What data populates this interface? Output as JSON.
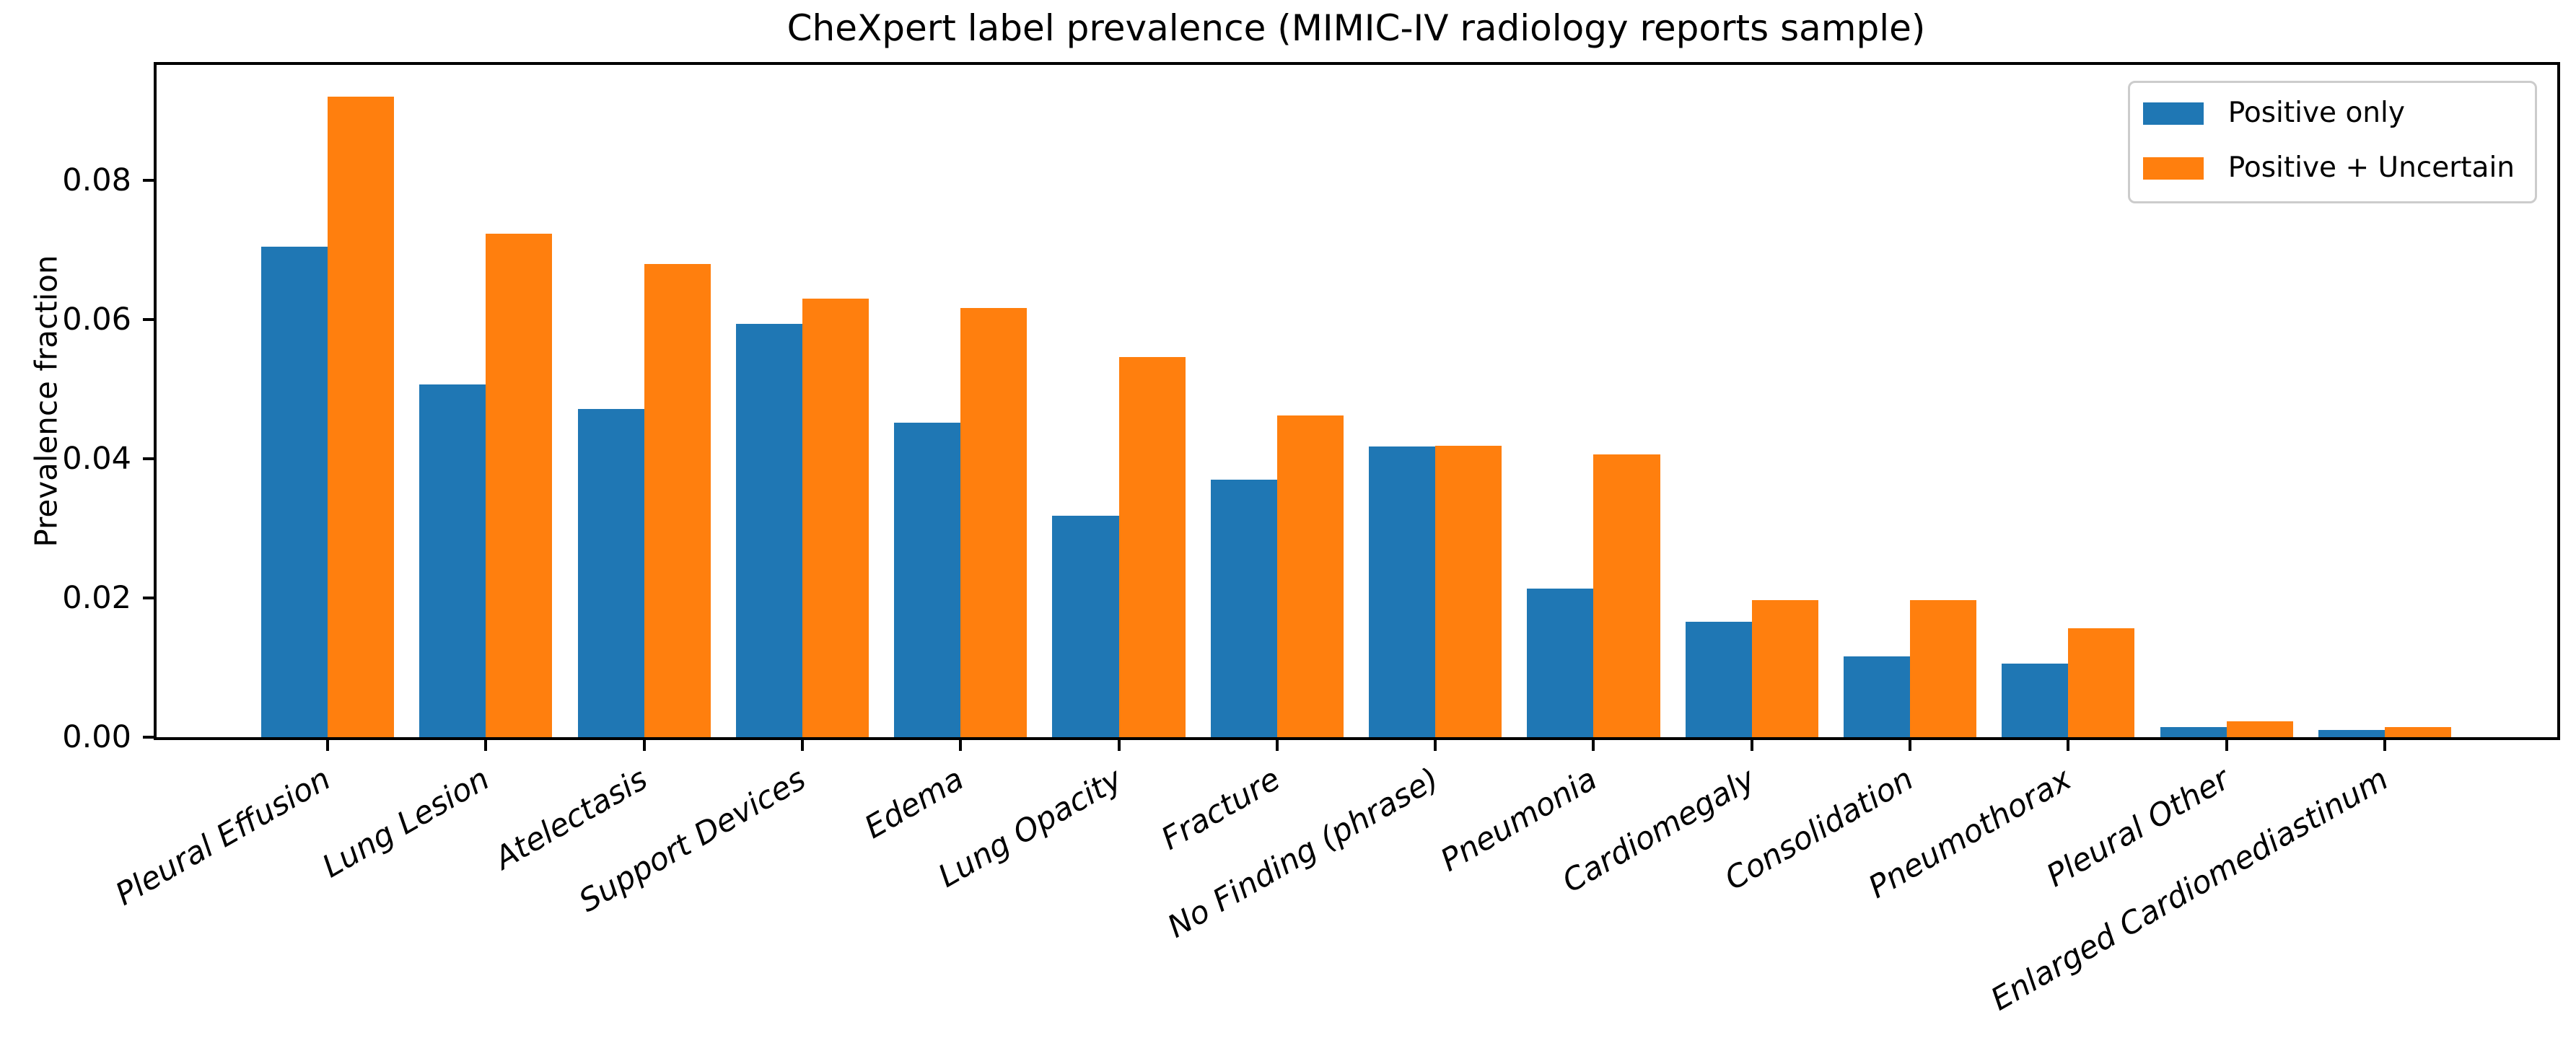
{
  "figure": {
    "title": "CheXpert label prevalence (MIMIC-IV radiology reports sample)"
  },
  "chart_data": {
    "type": "bar",
    "title": "CheXpert label prevalence (MIMIC-IV radiology reports sample)",
    "xlabel": "",
    "ylabel": "Prevalence fraction",
    "categories": [
      "Pleural Effusion",
      "Lung Lesion",
      "Atelectasis",
      "Support Devices",
      "Edema",
      "Lung Opacity",
      "Fracture",
      "No Finding (phrase)",
      "Pneumonia",
      "Cardiomegaly",
      "Consolidation",
      "Pneumothorax",
      "Pleural Other",
      "Enlarged Cardiomediastinum"
    ],
    "series": [
      {
        "name": "Positive only",
        "color": "#1f77b4",
        "values": [
          0.0705,
          0.0507,
          0.0472,
          0.0594,
          0.0452,
          0.0318,
          0.037,
          0.0418,
          0.0214,
          0.0166,
          0.0116,
          0.0106,
          0.0015,
          0.001
        ]
      },
      {
        "name": "Positive + Uncertain",
        "color": "#ff7f0e",
        "values": [
          0.092,
          0.0723,
          0.068,
          0.063,
          0.0617,
          0.0546,
          0.0462,
          0.0419,
          0.0406,
          0.0197,
          0.0197,
          0.0156,
          0.0023,
          0.0014
        ]
      }
    ],
    "ylim": [
      0,
      0.0966
    ],
    "yticks": [
      0.0,
      0.02,
      0.04,
      0.06,
      0.08
    ],
    "ytick_labels": [
      "0.00",
      "0.02",
      "0.04",
      "0.06",
      "0.08"
    ],
    "bar_width": 0.42,
    "x_tick_rotation_deg": 30,
    "legend_position": "upper right",
    "grid": false,
    "axis_color": "#000000",
    "background_color": "#ffffff"
  }
}
